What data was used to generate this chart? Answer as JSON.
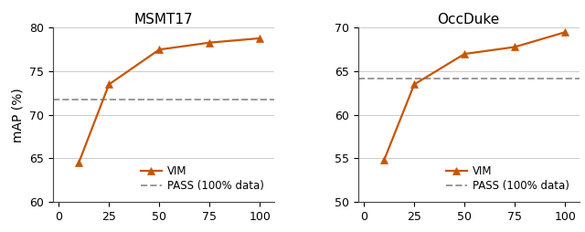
{
  "msmt17": {
    "title": "MSMT17",
    "x": [
      10,
      25,
      50,
      75,
      100
    ],
    "y_vim": [
      64.5,
      73.5,
      77.5,
      78.3,
      78.8
    ],
    "y_pass": 71.8,
    "ylim": [
      60,
      80
    ],
    "yticks": [
      60,
      65,
      70,
      75,
      80
    ],
    "ylabel": "mAP (%)"
  },
  "occduke": {
    "title": "OccDuke",
    "x": [
      10,
      25,
      50,
      75,
      100
    ],
    "y_vim": [
      54.8,
      63.5,
      67.0,
      67.8,
      69.5
    ],
    "y_pass": 64.2,
    "ylim": [
      50,
      70
    ],
    "yticks": [
      50,
      55,
      60,
      65,
      70
    ],
    "ylabel": ""
  },
  "xticks": [
    0,
    25,
    50,
    75,
    100
  ],
  "xlim": [
    -3,
    107
  ],
  "line_color": "#C85500",
  "pass_color": "#999999",
  "marker": "^",
  "marker_size": 6,
  "line_width": 1.6,
  "legend_vim": "VIM",
  "legend_pass": "PASS (100% data)",
  "tick_fontsize": 9,
  "label_fontsize": 10,
  "title_fontsize": 11,
  "legend_fontsize": 8.5
}
